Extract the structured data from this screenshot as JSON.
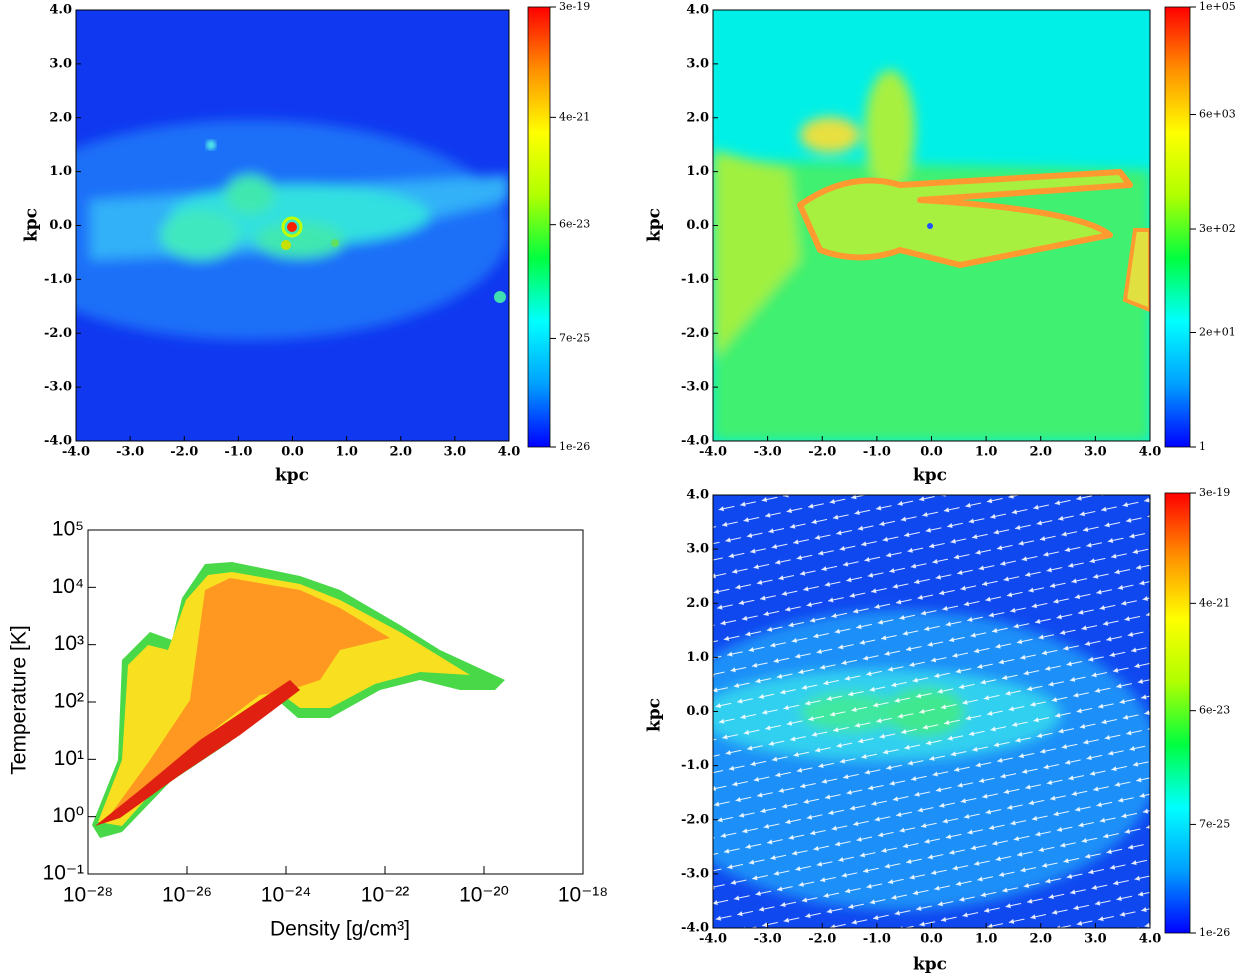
{
  "chart_data": [
    {
      "type": "image",
      "xlabel": "kpc",
      "ylabel": "kpc",
      "xlim": [
        -4,
        4
      ],
      "ylim": [
        -4,
        4
      ],
      "xticks": [
        {
          "value": -4,
          "label": "-4.0"
        },
        {
          "value": -3,
          "label": "-3.0"
        },
        {
          "value": -2,
          "label": "-2.0"
        },
        {
          "value": -1,
          "label": "-1.0"
        },
        {
          "value": 0,
          "label": "0.0"
        },
        {
          "value": 1,
          "label": "1.0"
        },
        {
          "value": 2,
          "label": "2.0"
        },
        {
          "value": 3,
          "label": "3.0"
        },
        {
          "value": 4,
          "label": "4.0"
        }
      ],
      "yticks": [
        {
          "value": -4,
          "label": "-4.0"
        },
        {
          "value": -3,
          "label": "-3.0"
        },
        {
          "value": -2,
          "label": "-2.0"
        },
        {
          "value": -1,
          "label": "-1.0"
        },
        {
          "value": 0,
          "label": "0.0"
        },
        {
          "value": 1,
          "label": "1.0"
        },
        {
          "value": 2,
          "label": "2.0"
        },
        {
          "value": 3,
          "label": "3.0"
        },
        {
          "value": 4,
          "label": "4.0"
        }
      ],
      "colorbar": {
        "lim": [
          1e-26,
          3e-19
        ],
        "log": true,
        "ticks": [
          1e-26,
          7e-25,
          6e-23,
          4e-21,
          3e-19
        ],
        "colors": [
          "#0000ff",
          "#00a0ff",
          "#00ffff",
          "#00ff40",
          "#b0ff00",
          "#ffff00",
          "#ff9000",
          "#ff0000"
        ]
      }
    },
    {
      "type": "image",
      "xlabel": "kpc",
      "ylabel": "kpc",
      "xlim": [
        -4,
        4
      ],
      "ylim": [
        -4,
        4
      ],
      "xticks": [
        {
          "value": -4,
          "label": "-4.0"
        },
        {
          "value": -3,
          "label": "-3.0"
        },
        {
          "value": -2,
          "label": "-2.0"
        },
        {
          "value": -1,
          "label": "-1.0"
        },
        {
          "value": 0,
          "label": "0.0"
        },
        {
          "value": 1,
          "label": "1.0"
        },
        {
          "value": 2,
          "label": "2.0"
        },
        {
          "value": 3,
          "label": "3.0"
        },
        {
          "value": 4,
          "label": "4.0"
        }
      ],
      "yticks": [
        {
          "value": -4,
          "label": "-4.0"
        },
        {
          "value": -3,
          "label": "-3.0"
        },
        {
          "value": -2,
          "label": "-2.0"
        },
        {
          "value": -1,
          "label": "-1.0"
        },
        {
          "value": 0,
          "label": "0.0"
        },
        {
          "value": 1,
          "label": "1.0"
        },
        {
          "value": 2,
          "label": "2.0"
        },
        {
          "value": 3,
          "label": "3.0"
        },
        {
          "value": 4,
          "label": "4.0"
        }
      ],
      "colorbar": {
        "lim": [
          1,
          100000
        ],
        "log": true,
        "ticks": [
          1,
          {
            "value": 20,
            "label": "2e+01"
          },
          {
            "value": 300,
            "label": "3e+02"
          },
          {
            "value": 6000,
            "label": "6e+03"
          },
          {
            "value": 100000,
            "label": "1e+05"
          }
        ],
        "colors": [
          "#0000ff",
          "#00a0ff",
          "#00ffff",
          "#00ff40",
          "#b0ff00",
          "#ffff00",
          "#ff9000",
          "#ff0000"
        ]
      }
    },
    {
      "type": "scatter",
      "xlabel": "Density [g/cm³]",
      "ylabel": "Temperature [K]",
      "log": true,
      "xlim": [
        1e-28,
        1e-18
      ],
      "ylim": [
        0.1,
        100000
      ],
      "xticks": [
        {
          "value": 1e-28,
          "label": "10⁻²⁸"
        },
        {
          "value": 1e-26,
          "label": "10⁻²⁶"
        },
        {
          "value": 1e-24,
          "label": "10⁻²⁴"
        },
        {
          "value": 1e-22,
          "label": "10⁻²²"
        },
        {
          "value": 1e-20,
          "label": "10⁻²⁰"
        },
        {
          "value": 1e-18,
          "label": "10⁻¹⁸"
        }
      ],
      "yticks": [
        {
          "value": 0.1,
          "label": "10⁻¹"
        },
        {
          "value": 1,
          "label": "10⁰"
        },
        {
          "value": 10,
          "label": "10¹"
        },
        {
          "value": 100,
          "label": "10²"
        },
        {
          "value": 1000,
          "label": "10³"
        },
        {
          "value": 10000,
          "label": "10⁴"
        },
        {
          "value": 100000,
          "label": "10⁵"
        }
      ]
    },
    {
      "type": "image",
      "xlabel": "kpc",
      "ylabel": "kpc",
      "xlim": [
        -4,
        4
      ],
      "ylim": [
        -4,
        4
      ],
      "xticks": [
        {
          "value": -4,
          "label": "-4.0"
        },
        {
          "value": -3,
          "label": "-3.0"
        },
        {
          "value": -2,
          "label": "-2.0"
        },
        {
          "value": -1,
          "label": "-1.0"
        },
        {
          "value": 0,
          "label": "0.0"
        },
        {
          "value": 1,
          "label": "1.0"
        },
        {
          "value": 2,
          "label": "2.0"
        },
        {
          "value": 3,
          "label": "3.0"
        },
        {
          "value": 4,
          "label": "4.0"
        }
      ],
      "yticks": [
        {
          "value": -4,
          "label": "-4.0"
        },
        {
          "value": -3,
          "label": "-3.0"
        },
        {
          "value": -2,
          "label": "-2.0"
        },
        {
          "value": -1,
          "label": "-1.0"
        },
        {
          "value": 0,
          "label": "0.0"
        },
        {
          "value": 1,
          "label": "1.0"
        },
        {
          "value": 2,
          "label": "2.0"
        },
        {
          "value": 3,
          "label": "3.0"
        },
        {
          "value": 4,
          "label": "4.0"
        }
      ],
      "colorbar": {
        "lim": [
          1e-26,
          3e-19
        ],
        "log": true,
        "ticks": [
          1e-26,
          7e-25,
          6e-23,
          4e-21,
          3e-19
        ],
        "colors": [
          "#0000ff",
          "#00a0ff",
          "#00ffff",
          "#00ff40",
          "#b0ff00",
          "#ffff00",
          "#ff9000",
          "#ff0000"
        ]
      }
    }
  ]
}
